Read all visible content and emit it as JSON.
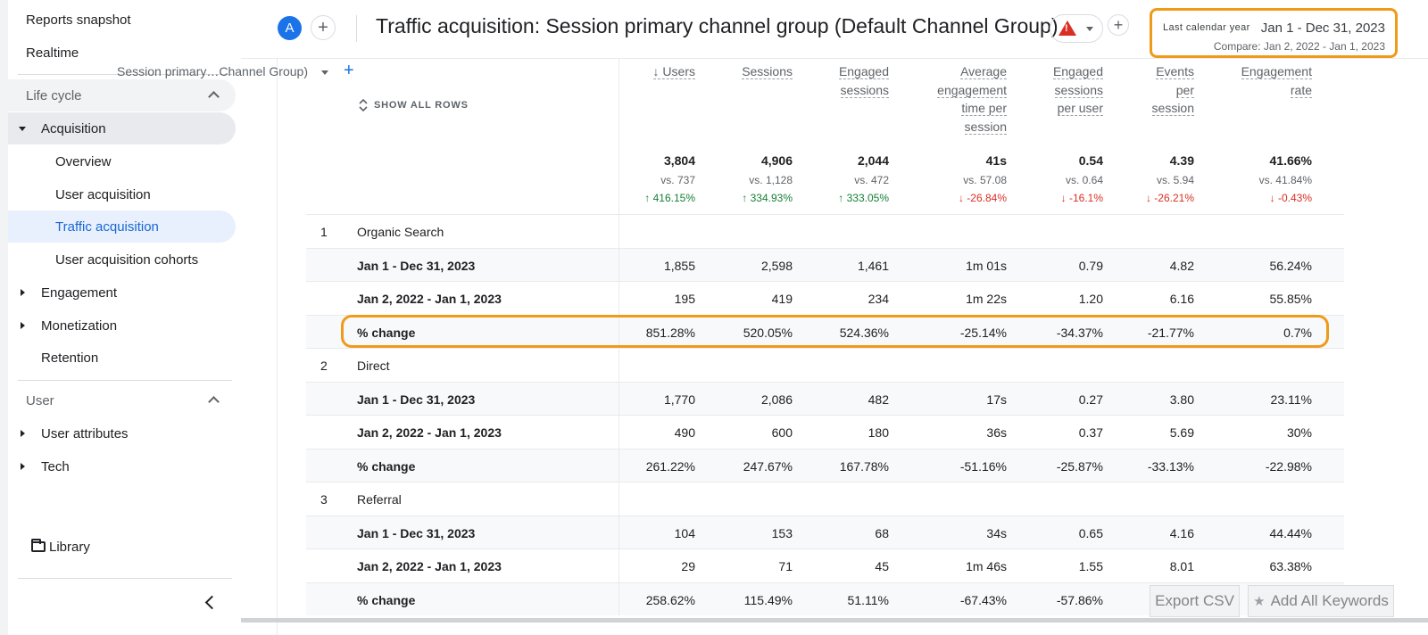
{
  "sidebar": {
    "reports_snapshot": "Reports snapshot",
    "realtime": "Realtime",
    "lifecycle": "Life cycle",
    "acquisition": "Acquisition",
    "overview": "Overview",
    "user_acquisition": "User acquisition",
    "traffic_acquisition": "Traffic acquisition",
    "user_acquisition_cohorts": "User acquisition cohorts",
    "engagement": "Engagement",
    "monetization": "Monetization",
    "retention": "Retention",
    "user": "User",
    "user_attributes": "User attributes",
    "tech": "Tech",
    "library": "Library"
  },
  "header": {
    "avatar": "A",
    "plus": "+",
    "title": "Traffic acquisition: Session primary channel group (Default Channel Group)",
    "date_label": "Last calendar year",
    "date_range": "Jan 1 - Dec 31, 2023",
    "date_compare": "Compare: Jan 2, 2022 - Jan 1, 2023"
  },
  "table": {
    "dimension": "Session primary…Channel Group)",
    "dim_plus": "+",
    "show_all": "SHOW ALL ROWS",
    "columns": [
      {
        "lines": [
          "↓ Users"
        ]
      },
      {
        "lines": [
          "Sessions"
        ]
      },
      {
        "lines": [
          "Engaged",
          "sessions"
        ]
      },
      {
        "lines": [
          "Average",
          "engagement",
          "time per",
          "session"
        ]
      },
      {
        "lines": [
          "Engaged",
          "sessions",
          "per user"
        ]
      },
      {
        "lines": [
          "Events",
          "per",
          "session"
        ]
      },
      {
        "lines": [
          "Engagement",
          "rate"
        ]
      }
    ],
    "totals": [
      "3,804",
      "4,906",
      "2,044",
      "41s",
      "0.54",
      "4.39",
      "41.66%"
    ],
    "vs": [
      "vs. 737",
      "vs. 1,128",
      "vs. 472",
      "vs. 57.08",
      "vs. 0.64",
      "vs. 5.94",
      "vs. 41.84%"
    ],
    "changes": [
      {
        "text": "↑ 416.15%",
        "dir": "up"
      },
      {
        "text": "↑ 334.93%",
        "dir": "up"
      },
      {
        "text": "↑ 333.05%",
        "dir": "up"
      },
      {
        "text": "↓ -26.84%",
        "dir": "down"
      },
      {
        "text": "↓ -16.1%",
        "dir": "down"
      },
      {
        "text": "↓ -26.21%",
        "dir": "down"
      },
      {
        "text": "↓ -0.43%",
        "dir": "down"
      }
    ],
    "groups": [
      {
        "idx": "1",
        "name": "Organic Search",
        "rows": [
          {
            "label": "Jan 1 - Dec 31, 2023",
            "values": [
              "1,855",
              "2,598",
              "1,461",
              "1m 01s",
              "0.79",
              "4.82",
              "56.24%"
            ]
          },
          {
            "label": "Jan 2, 2022 - Jan 1, 2023",
            "values": [
              "195",
              "419",
              "234",
              "1m 22s",
              "1.20",
              "6.16",
              "55.85%"
            ]
          },
          {
            "label": "% change",
            "values": [
              "851.28%",
              "520.05%",
              "524.36%",
              "-25.14%",
              "-34.37%",
              "-21.77%",
              "0.7%"
            ]
          }
        ]
      },
      {
        "idx": "2",
        "name": "Direct",
        "rows": [
          {
            "label": "Jan 1 - Dec 31, 2023",
            "values": [
              "1,770",
              "2,086",
              "482",
              "17s",
              "0.27",
              "3.80",
              "23.11%"
            ]
          },
          {
            "label": "Jan 2, 2022 - Jan 1, 2023",
            "values": [
              "490",
              "600",
              "180",
              "36s",
              "0.37",
              "5.69",
              "30%"
            ]
          },
          {
            "label": "% change",
            "values": [
              "261.22%",
              "247.67%",
              "167.78%",
              "-51.16%",
              "-25.87%",
              "-33.13%",
              "-22.98%"
            ]
          }
        ]
      },
      {
        "idx": "3",
        "name": "Referral",
        "rows": [
          {
            "label": "Jan 1 - Dec 31, 2023",
            "values": [
              "104",
              "153",
              "68",
              "34s",
              "0.65",
              "4.16",
              "44.44%"
            ]
          },
          {
            "label": "Jan 2, 2022 - Jan 1, 2023",
            "values": [
              "29",
              "71",
              "45",
              "1m 46s",
              "1.55",
              "8.01",
              "63.38%"
            ]
          },
          {
            "label": "% change",
            "values": [
              "258.62%",
              "115.49%",
              "51.11%",
              "-67.43%",
              "-57.86%",
              "",
              ""
            ]
          }
        ]
      }
    ]
  },
  "overlay": {
    "export_csv": "Export CSV",
    "add_keywords": "Add All Keywords",
    "star": "★"
  }
}
